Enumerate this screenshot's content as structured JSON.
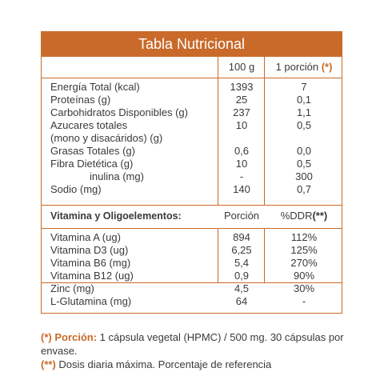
{
  "title": "Tabla Nutricional",
  "header": {
    "col_100g": "100 g",
    "col_porcion": "1 porción",
    "col_porcion_mark": "(*)"
  },
  "nutrients": [
    {
      "name": "Energía Total (kcal)",
      "v100": "1393",
      "vp": "7"
    },
    {
      "name": "Proteínas (g)",
      "v100": "25",
      "vp": "0,1"
    },
    {
      "name": "Carbohidratos Disponibles (g)",
      "v100": "237",
      "vp": "1,1"
    },
    {
      "name": "Azucares totales",
      "v100": "10",
      "vp": "0,5"
    },
    {
      "name": "(mono y disacáridos) (g)",
      "v100": "",
      "vp": ""
    },
    {
      "name": "Grasas Totales (g)",
      "v100": "0,6",
      "vp": "0,0"
    },
    {
      "name": "Fibra Dietética (g)",
      "v100": "10",
      "vp": "0,5"
    },
    {
      "name": "inulina (mg)",
      "v100": "-",
      "vp": "300"
    },
    {
      "name": "Sodio (mg)",
      "v100": "140",
      "vp": "0,7"
    }
  ],
  "section2_header": {
    "label": "Vitamina y Oligoelementos:",
    "col_porcion": "Porción",
    "col_ddr": "%DDR",
    "col_ddr_mark": "(**)"
  },
  "vitamins": [
    {
      "name": "Vitamina A (ug)",
      "v": "894",
      "ddr": "112%"
    },
    {
      "name": "Vitamina D3 (ug)",
      "v": "6,25",
      "ddr": "125%"
    },
    {
      "name": "Vitamina B6 (mg)",
      "v": "5,4",
      "ddr": "270%"
    },
    {
      "name": "Vitamina B12 (ug)",
      "v": "0,9",
      "ddr": "90%"
    },
    {
      "name": "Zinc (mg)",
      "v": "4,5",
      "ddr": "30%"
    },
    {
      "name": "L-Glutamina (mg)",
      "v": "64",
      "ddr": "-"
    }
  ],
  "footnotes": {
    "fn1_mark": "(*) Porción:",
    "fn1_text": " 1 cápsula vegetal (HPMC) / 500 mg. 30 cápsulas por envase.",
    "fn2_mark": "(**)",
    "fn2_text": " Dosis diaria máxima. Porcentaje de referencia"
  },
  "colors": {
    "accent": "#c96a2a",
    "text": "#3a3a3a"
  }
}
